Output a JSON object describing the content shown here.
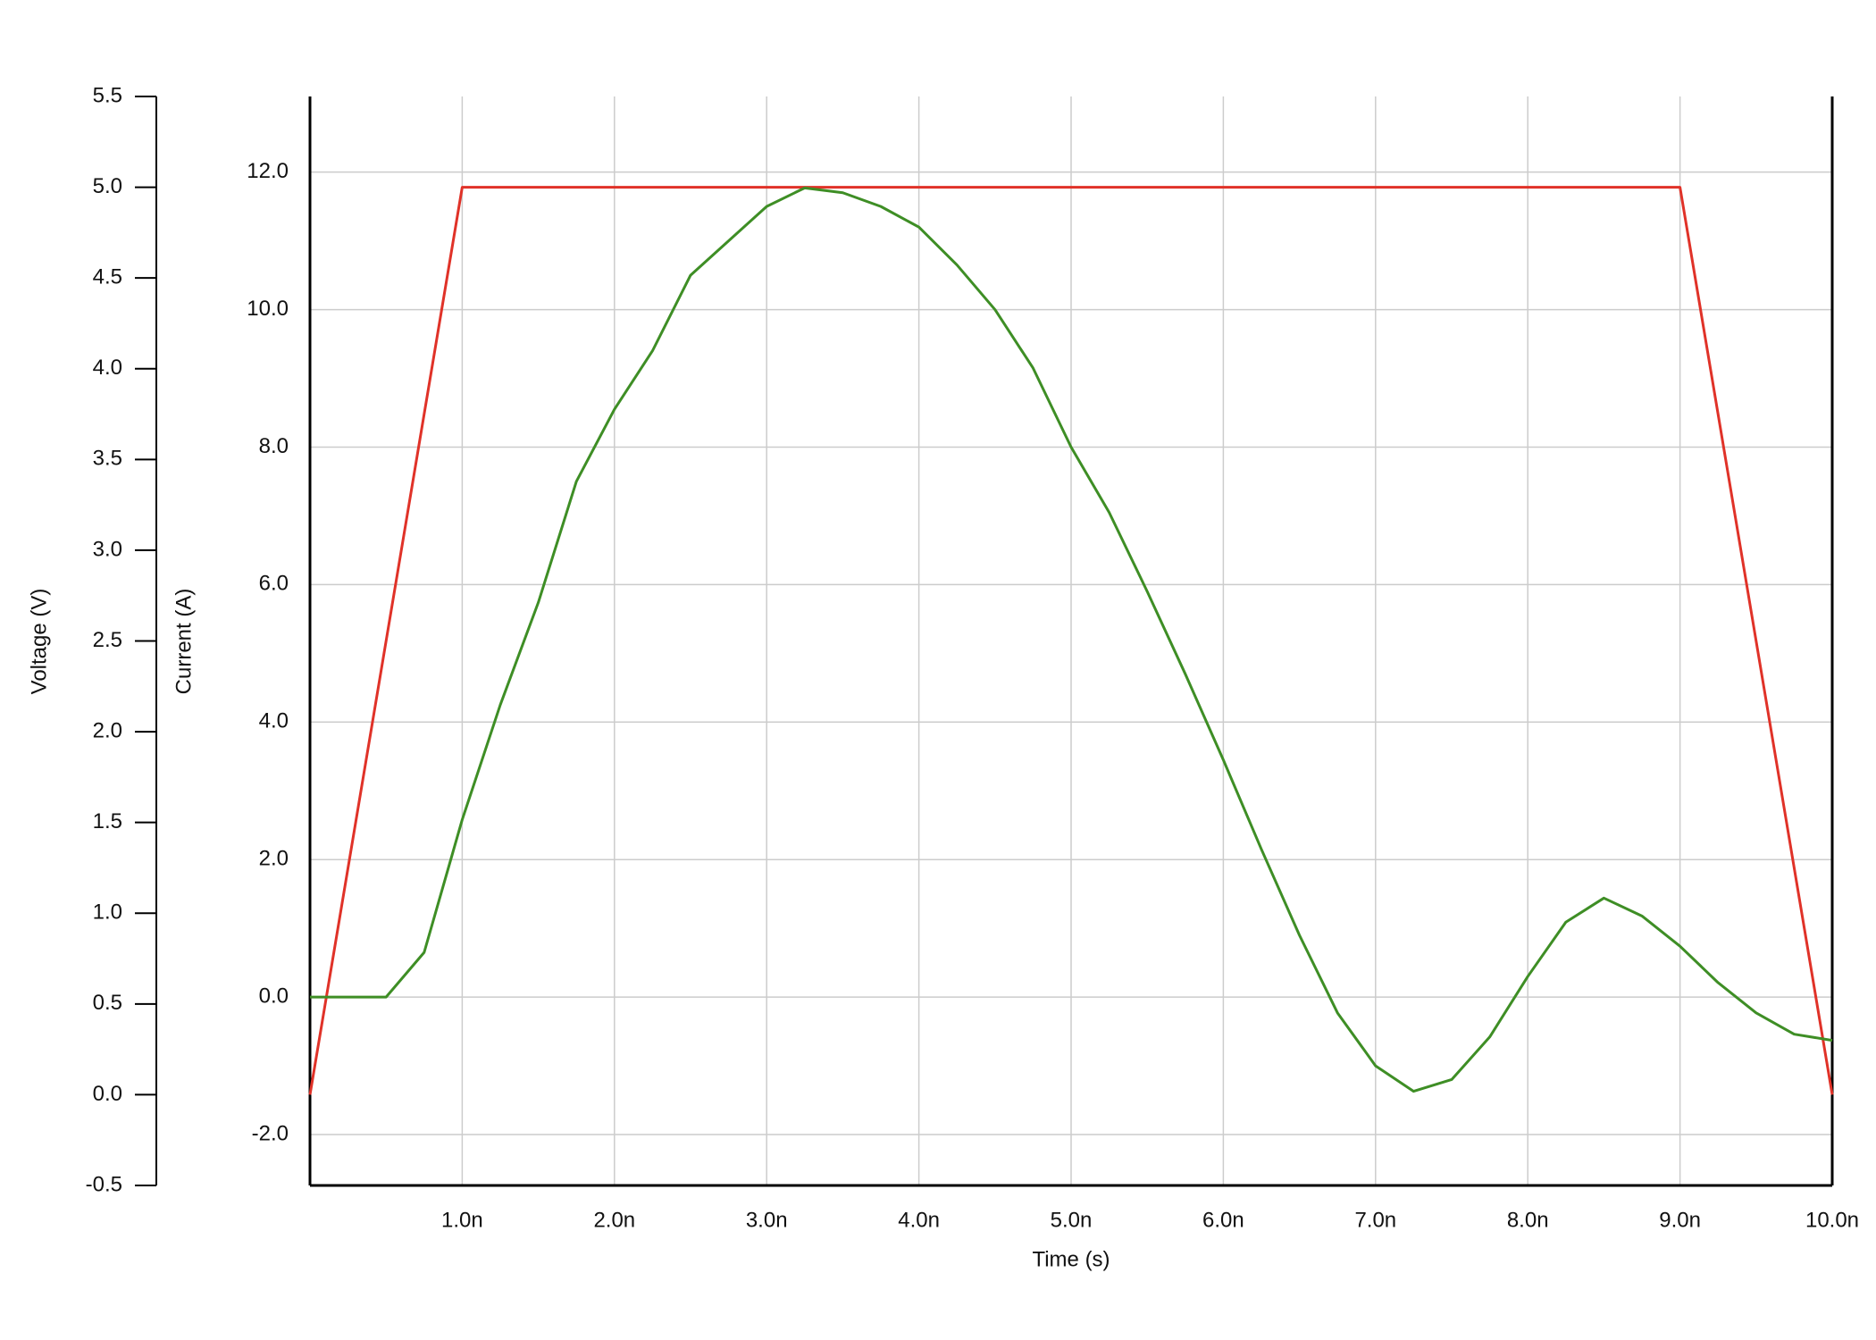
{
  "chart_data": {
    "type": "line",
    "xlabel": "Time (s)",
    "ylabel": "Current (A)",
    "y2label": "Voltage (V)",
    "xlim": [
      0,
      1e-08
    ],
    "xticks": [
      {
        "value": 1e-09,
        "label": "1.0n"
      },
      {
        "value": 2e-09,
        "label": "2.0n"
      },
      {
        "value": 3e-09,
        "label": "3.0n"
      },
      {
        "value": 4e-09,
        "label": "4.0n"
      },
      {
        "value": 5e-09,
        "label": "5.0n"
      },
      {
        "value": 6e-09,
        "label": "6.0n"
      },
      {
        "value": 7e-09,
        "label": "7.0n"
      },
      {
        "value": 8e-09,
        "label": "8.0n"
      },
      {
        "value": 9e-09,
        "label": "9.0n"
      },
      {
        "value": 1e-08,
        "label": "10.0n"
      }
    ],
    "ylim": [
      -2.74,
      13.1
    ],
    "yticks": [
      {
        "value": -2,
        "label": "-2.0"
      },
      {
        "value": 0,
        "label": "0.0"
      },
      {
        "value": 2,
        "label": "2.0"
      },
      {
        "value": 4,
        "label": "4.0"
      },
      {
        "value": 6,
        "label": "6.0"
      },
      {
        "value": 8,
        "label": "8.0"
      },
      {
        "value": 10,
        "label": "10.0"
      },
      {
        "value": 12,
        "label": "12.0"
      }
    ],
    "y2lim": [
      -0.5,
      5.5
    ],
    "y2ticks": [
      -0.5,
      {
        "value": 0,
        "label": "0.0"
      },
      0.5,
      {
        "value": 1,
        "label": "1.0"
      },
      1.5,
      {
        "value": 2,
        "label": "2.0"
      },
      2.5,
      {
        "value": 3,
        "label": "3.0"
      },
      3.5,
      {
        "value": 4,
        "label": "4.0"
      },
      4.5,
      {
        "value": 5,
        "label": "5.0"
      },
      5.5
    ],
    "grid": true,
    "series": [
      {
        "color": "#e03228",
        "axis": "y2",
        "x": [
          0,
          1e-09,
          9e-09,
          1e-08
        ],
        "values": [
          0,
          5,
          5,
          0
        ]
      },
      {
        "color": "#3e8e25",
        "axis": "y",
        "x": [
          0,
          2.5e-10,
          5e-10,
          7.5e-10,
          1e-09,
          1.25e-09,
          1.5e-09,
          1.75e-09,
          2e-09,
          2.25e-09,
          2.5e-09,
          2.75e-09,
          3e-09,
          3.25e-09,
          3.5e-09,
          3.75e-09,
          4e-09,
          4.25e-09,
          4.5e-09,
          4.75e-09,
          5e-09,
          5.25e-09,
          5.5e-09,
          5.75e-09,
          6e-09,
          6.25e-09,
          6.5e-09,
          6.75e-09,
          7e-09,
          7.25e-09,
          7.5e-09,
          7.75e-09,
          8e-09,
          8.25e-09,
          8.5e-09,
          8.75e-09,
          9e-09,
          9.25e-09,
          9.5e-09,
          9.75e-09,
          1e-08
        ],
        "values": [
          0,
          0,
          0,
          0.65,
          2.58,
          4.25,
          5.74,
          7.5,
          8.55,
          9.4,
          10.5,
          11.0,
          11.5,
          11.77,
          11.7,
          11.5,
          11.2,
          10.65,
          10.0,
          9.15,
          8.0,
          7.05,
          5.9,
          4.7,
          3.45,
          2.15,
          0.9,
          -0.23,
          -1.0,
          -1.37,
          -1.2,
          -0.58,
          0.3,
          1.09,
          1.44,
          1.18,
          0.74,
          0.21,
          -0.23,
          -0.54,
          -0.63
        ]
      }
    ]
  }
}
